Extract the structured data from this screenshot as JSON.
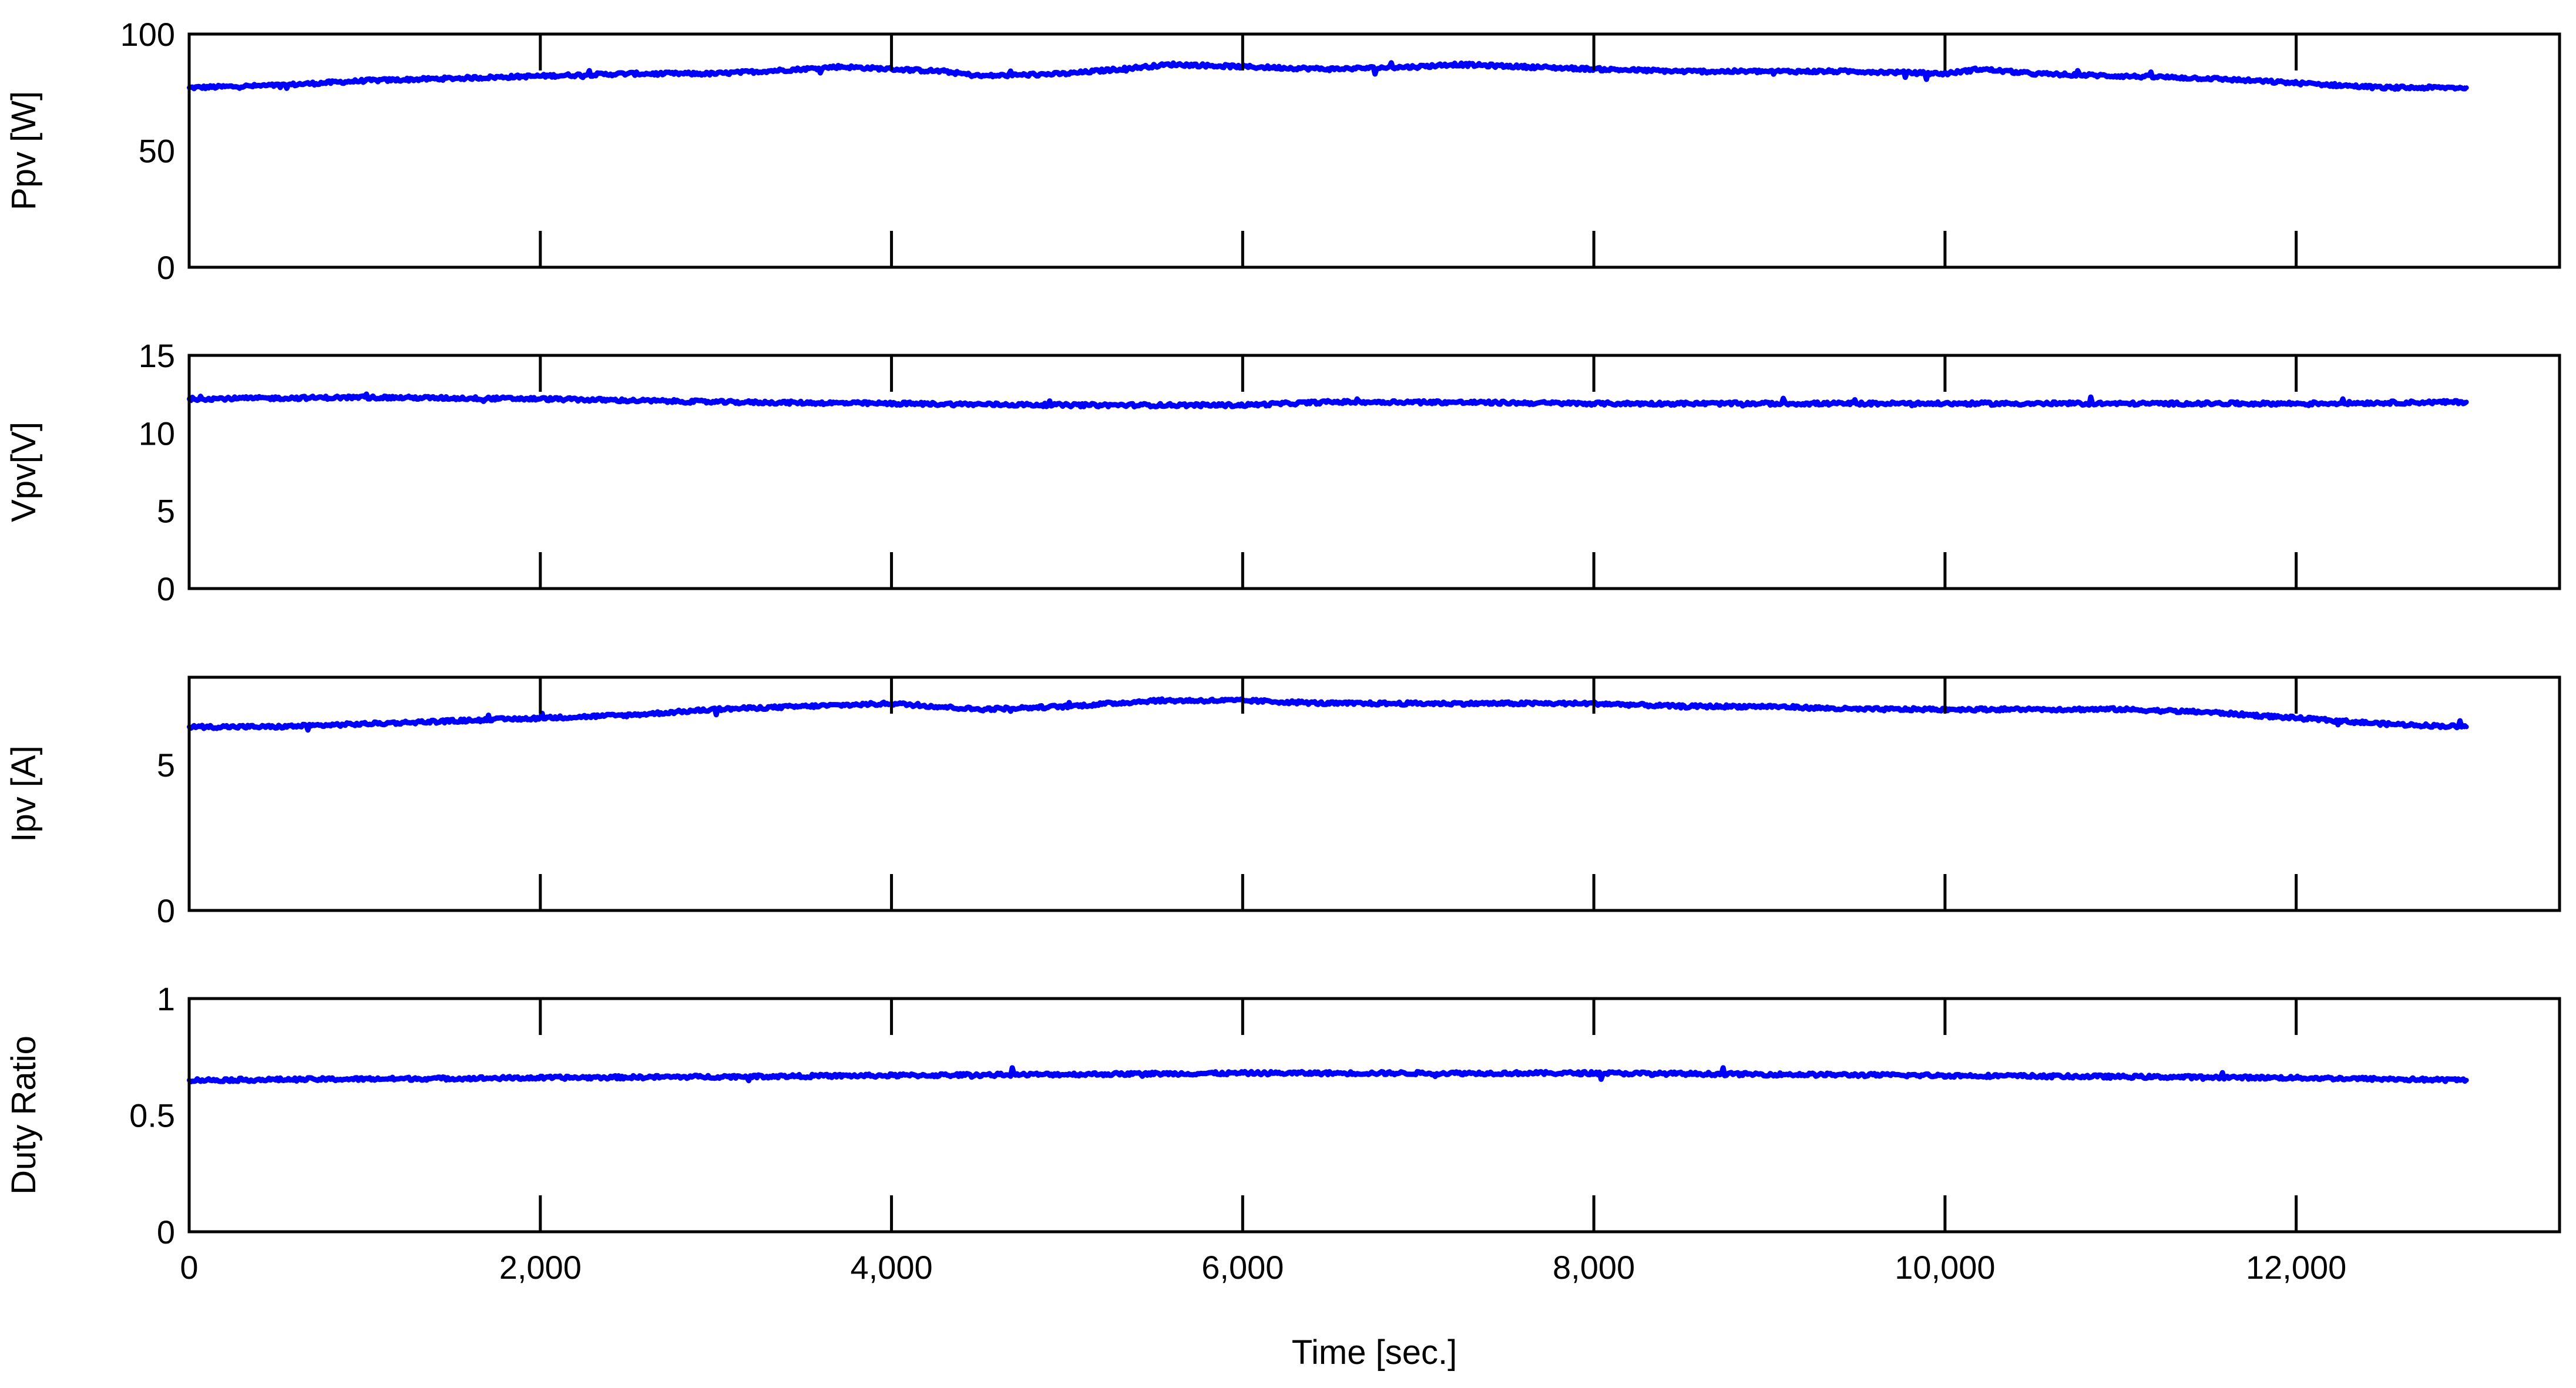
{
  "chart_data": {
    "type": "line",
    "xlabel": "Time [sec.]",
    "xlim": [
      0,
      13500
    ],
    "xticks": [
      0,
      2000,
      4000,
      6000,
      8000,
      10000,
      12000
    ],
    "xtick_labels": [
      "0",
      "2,000",
      "4,000",
      "6,000",
      "8,000",
      "10,000",
      "12,000"
    ],
    "line_color": "#0000ff",
    "grid": false,
    "panels": [
      {
        "id": "ppv",
        "ylabel": "Ppv [W]",
        "ylim": [
          0,
          100
        ],
        "yticks": [
          0,
          50,
          100
        ],
        "ytick_labels": [
          "0",
          "50",
          "100"
        ],
        "series": [
          {
            "x": [
              0,
              500,
              1000,
              1500,
              2000,
              2500,
              3000,
              3500,
              3700,
              4000,
              4300,
              4500,
              5000,
              5300,
              5600,
              6000,
              6500,
              7000,
              7200,
              7600,
              8000,
              8500,
              9000,
              9500,
              10000,
              10200,
              10500,
              11000,
              11500,
              12000,
              12500,
              12970
            ],
            "y": [
              77,
              78,
              80,
              81,
              82,
              83,
              83,
              85,
              86,
              85,
              84,
              82,
              83,
              85,
              87,
              86,
              85,
              86,
              87,
              86,
              85,
              84,
              84,
              84,
              83,
              85,
              83,
              82,
              81,
              79,
              77,
              77
            ]
          }
        ]
      },
      {
        "id": "vpv",
        "ylabel": "Vpv[V]",
        "ylim": [
          0,
          15
        ],
        "yticks": [
          0,
          5,
          10,
          15
        ],
        "ytick_labels": [
          "0",
          "5",
          "10",
          "15"
        ],
        "series": [
          {
            "x": [
              0,
              1000,
              2000,
              3000,
              4000,
              5000,
              6000,
              6500,
              7000,
              8000,
              9000,
              10000,
              11000,
              12000,
              12970
            ],
            "y": [
              12.2,
              12.3,
              12.2,
              12.0,
              11.9,
              11.8,
              11.8,
              12.0,
              12.0,
              11.9,
              11.9,
              11.9,
              11.9,
              11.9,
              12.0
            ]
          }
        ]
      },
      {
        "id": "ipv",
        "ylabel": "Ipv [A]",
        "ylim": [
          0,
          8
        ],
        "yticks": [
          0,
          5
        ],
        "ytick_labels": [
          "0",
          "5"
        ],
        "series": [
          {
            "x": [
              0,
              500,
              1000,
              1500,
              2000,
              2500,
              3000,
              3500,
              4000,
              4500,
              5000,
              5500,
              6000,
              6500,
              7000,
              7500,
              8000,
              8500,
              9000,
              9500,
              10000,
              10500,
              11000,
              11500,
              12000,
              12500,
              12970
            ],
            "y": [
              6.3,
              6.3,
              6.4,
              6.5,
              6.6,
              6.7,
              6.9,
              7.0,
              7.1,
              6.9,
              7.0,
              7.2,
              7.2,
              7.1,
              7.1,
              7.1,
              7.1,
              7.0,
              7.0,
              6.9,
              6.9,
              6.9,
              6.9,
              6.8,
              6.6,
              6.4,
              6.3
            ]
          }
        ]
      },
      {
        "id": "duty",
        "ylabel": "Duty Ratio",
        "ylim": [
          0,
          1
        ],
        "yticks": [
          0,
          0.5,
          1
        ],
        "ytick_labels": [
          "0",
          "0.5",
          "1"
        ],
        "series": [
          {
            "x": [
              0,
              2000,
              4000,
              6000,
              8000,
              10000,
              12000,
              12970
            ],
            "y": [
              0.65,
              0.66,
              0.67,
              0.68,
              0.68,
              0.67,
              0.66,
              0.65
            ]
          }
        ]
      }
    ]
  }
}
